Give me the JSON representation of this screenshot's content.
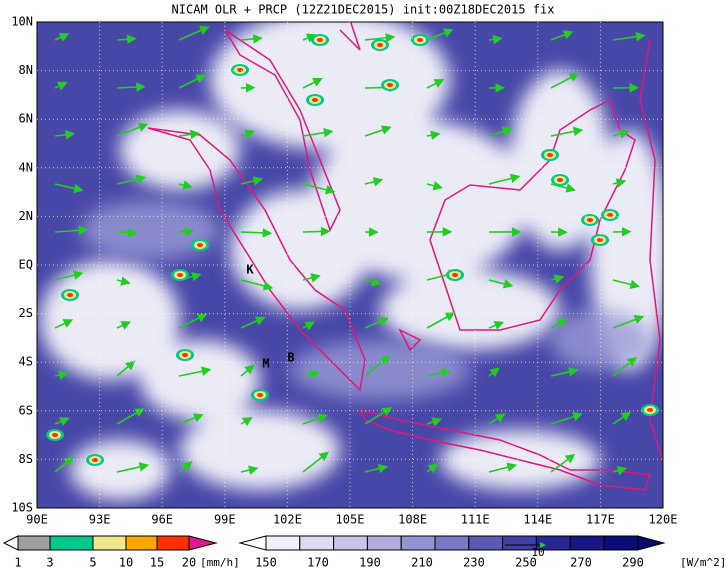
{
  "title": "NICAM OLR + PRCP (12Z21DEC2015) init:00Z18DEC2015 fix",
  "map": {
    "x_labels": [
      "90E",
      "93E",
      "96E",
      "99E",
      "102E",
      "105E",
      "108E",
      "111E",
      "114E",
      "117E",
      "120E"
    ],
    "y_labels": [
      "10N",
      "8N",
      "6N",
      "4N",
      "2N",
      "EQ",
      "2S",
      "4S",
      "6S",
      "8S",
      "10S"
    ],
    "place_labels": [
      "K",
      "M",
      "B"
    ]
  },
  "legend_precip": {
    "labels": [
      "1",
      "3",
      "5",
      "10",
      "15",
      "20"
    ],
    "unit": "[mm/h]"
  },
  "legend_olr": {
    "labels": [
      "150",
      "170",
      "190",
      "210",
      "230",
      "250",
      "270",
      "290"
    ],
    "unit": "[W/m^2]"
  },
  "vector_scale": "10"
}
